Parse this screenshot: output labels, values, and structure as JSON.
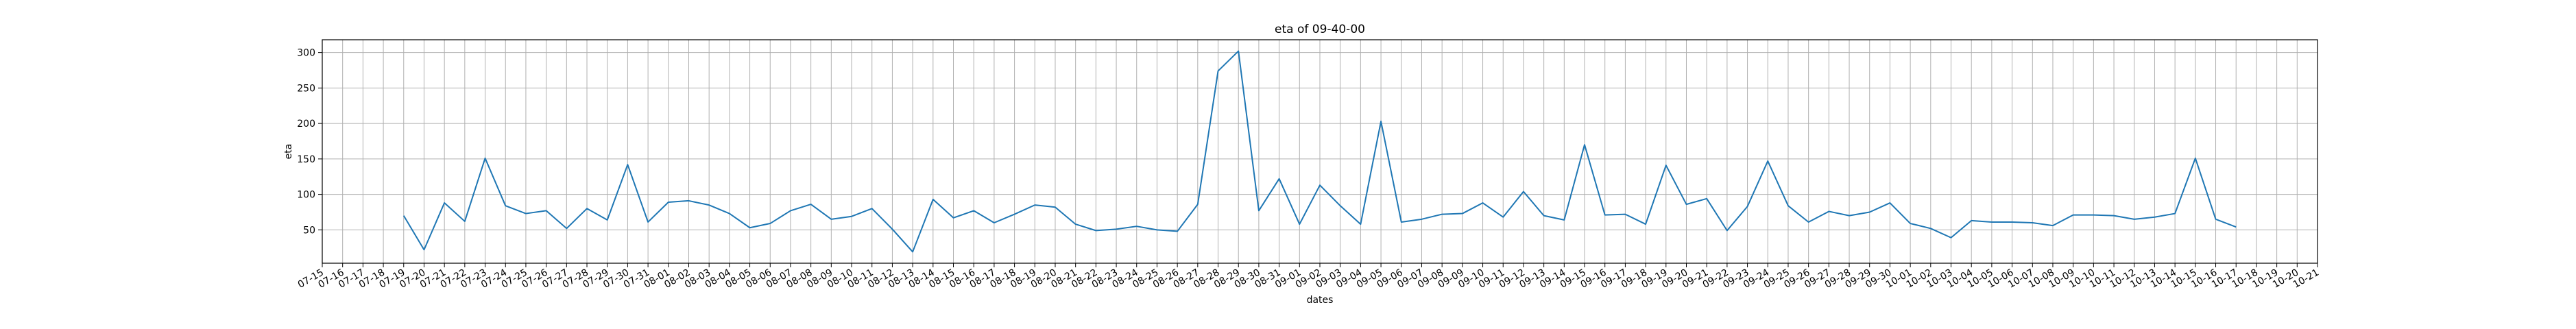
{
  "chart_data": {
    "type": "line",
    "title": "eta of 09-40-00",
    "xlabel": "dates",
    "ylabel": "eta",
    "grid": true,
    "legend": "none",
    "colors": {
      "line": "#1f77b4",
      "grid": "#b0b0b0",
      "axes": "#000000"
    },
    "xlim": [
      0,
      98
    ],
    "ylim": [
      3,
      318
    ],
    "yticks": [
      50,
      100,
      150,
      200,
      250,
      300
    ],
    "xtick_labels": [
      "07-15",
      "07-16",
      "07-17",
      "07-18",
      "07-19",
      "07-20",
      "07-21",
      "07-22",
      "07-23",
      "07-24",
      "07-25",
      "07-26",
      "07-27",
      "07-28",
      "07-29",
      "07-30",
      "07-31",
      "08-01",
      "08-02",
      "08-03",
      "08-04",
      "08-05",
      "08-06",
      "08-07",
      "08-08",
      "08-09",
      "08-10",
      "08-11",
      "08-12",
      "08-13",
      "08-14",
      "08-15",
      "08-16",
      "08-17",
      "08-18",
      "08-19",
      "08-20",
      "08-21",
      "08-22",
      "08-23",
      "08-24",
      "08-25",
      "08-26",
      "08-27",
      "08-28",
      "08-29",
      "08-30",
      "08-31",
      "09-01",
      "09-02",
      "09-03",
      "09-04",
      "09-05",
      "09-06",
      "09-07",
      "09-08",
      "09-09",
      "09-10",
      "09-11",
      "09-12",
      "09-13",
      "09-14",
      "09-15",
      "09-16",
      "09-17",
      "09-18",
      "09-19",
      "09-20",
      "09-21",
      "09-22",
      "09-23",
      "09-24",
      "09-25",
      "09-26",
      "09-27",
      "09-28",
      "09-29",
      "09-30",
      "10-01",
      "10-02",
      "10-03",
      "10-04",
      "10-05",
      "10-06",
      "10-07",
      "10-08",
      "10-09",
      "10-10",
      "10-11",
      "10-12",
      "10-13",
      "10-14",
      "10-15",
      "10-16",
      "10-17",
      "10-18",
      "10-19",
      "10-20",
      "10-21"
    ],
    "x": [
      "07-19",
      "07-20",
      "07-21",
      "07-22",
      "07-23",
      "07-24",
      "07-25",
      "07-26",
      "07-27",
      "07-28",
      "07-29",
      "07-30",
      "07-31",
      "08-01",
      "08-02",
      "08-03",
      "08-04",
      "08-05",
      "08-06",
      "08-07",
      "08-08",
      "08-09",
      "08-10",
      "08-11",
      "08-12",
      "08-13",
      "08-14",
      "08-15",
      "08-16",
      "08-17",
      "08-18",
      "08-19",
      "08-20",
      "08-21",
      "08-22",
      "08-23",
      "08-24",
      "08-25",
      "08-26",
      "08-27",
      "08-28",
      "08-29",
      "08-30",
      "08-31",
      "09-01",
      "09-02",
      "09-03",
      "09-04",
      "09-05",
      "09-06",
      "09-07",
      "09-08",
      "09-09",
      "09-10",
      "09-11",
      "09-12",
      "09-13",
      "09-14",
      "09-15",
      "09-16",
      "09-17",
      "09-18",
      "09-19",
      "09-20",
      "09-21",
      "09-22",
      "09-23",
      "09-24",
      "09-25",
      "09-26",
      "09-27",
      "09-28",
      "09-29",
      "09-30",
      "10-01",
      "10-02",
      "10-03",
      "10-04",
      "10-05",
      "10-06",
      "10-07",
      "10-08",
      "10-09",
      "10-10",
      "10-11",
      "10-12",
      "10-13",
      "10-14",
      "10-15",
      "10-16",
      "10-17"
    ],
    "values": [
      70,
      22,
      88,
      62,
      151,
      84,
      73,
      77,
      52,
      80,
      64,
      142,
      61,
      89,
      91,
      85,
      73,
      53,
      59,
      77,
      86,
      65,
      69,
      80,
      51,
      19,
      93,
      67,
      77,
      60,
      72,
      85,
      82,
      58,
      49,
      51,
      55,
      50,
      48,
      86,
      274,
      302,
      77,
      122,
      58,
      113,
      84,
      58,
      203,
      61,
      65,
      72,
      73,
      88,
      68,
      104,
      70,
      64,
      170,
      71,
      72,
      58,
      141,
      86,
      94,
      49,
      83,
      147,
      84,
      61,
      76,
      70,
      75,
      88,
      59,
      52,
      39,
      63,
      61,
      61,
      60,
      56,
      71,
      71,
      70,
      65,
      68,
      73,
      151,
      65,
      54
    ]
  }
}
